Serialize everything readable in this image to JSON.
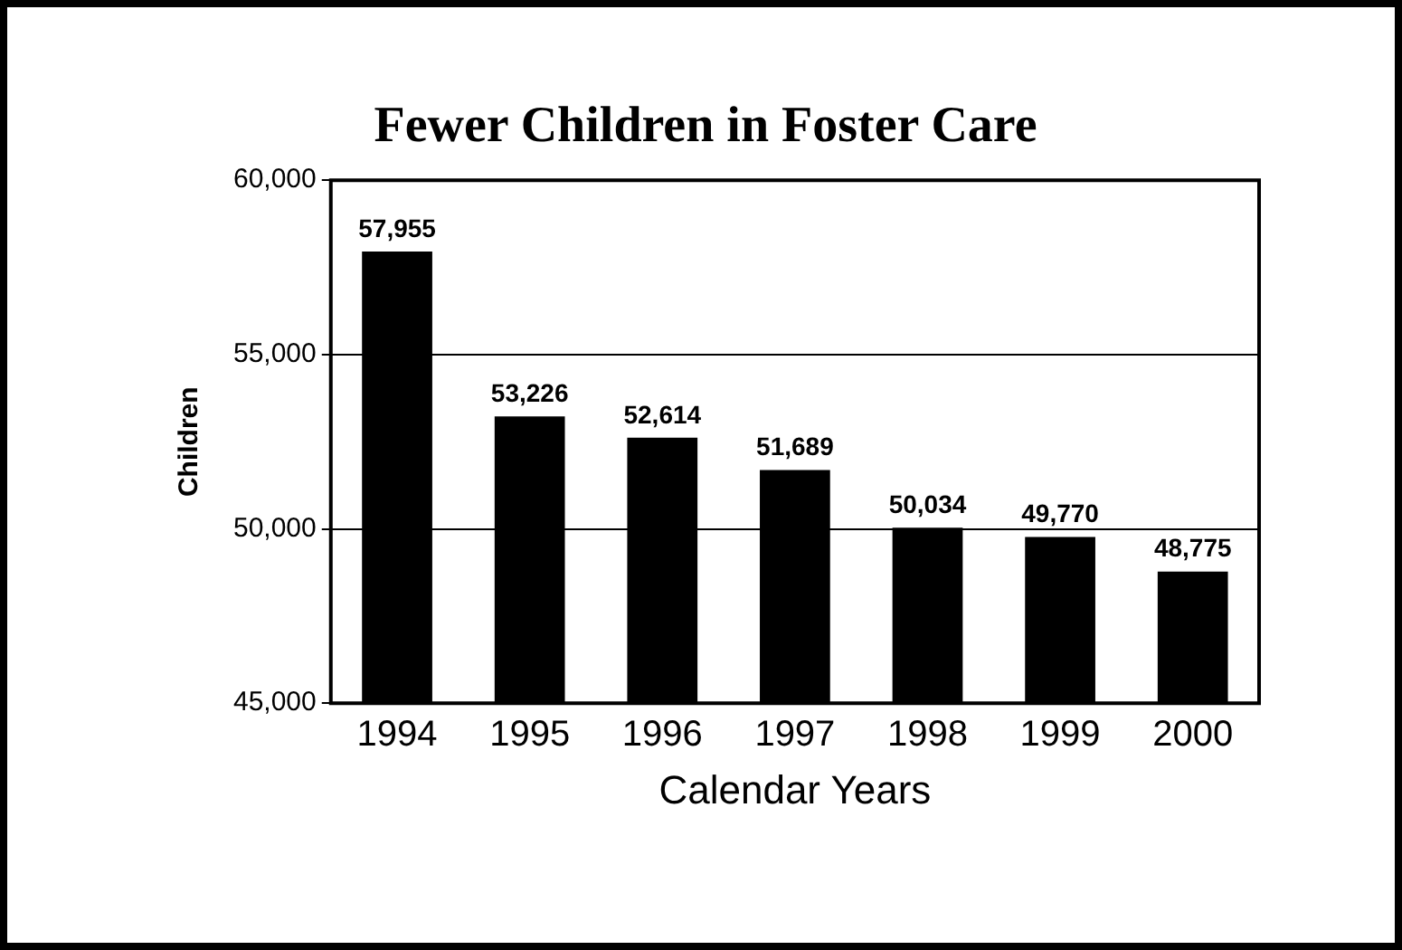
{
  "chart_data": {
    "type": "bar",
    "title": "Fewer Children in Foster Care",
    "xlabel": "Calendar Years",
    "ylabel": "Children",
    "categories": [
      "1994",
      "1995",
      "1996",
      "1997",
      "1998",
      "1999",
      "2000"
    ],
    "values": [
      57955,
      53226,
      52614,
      51689,
      50034,
      49770,
      48775
    ],
    "color": "#000000",
    "value_labels": [
      "57,955",
      "53,226",
      "52,614",
      "51,689",
      "50,034",
      "49,770",
      "48,775"
    ],
    "ylim": [
      45000,
      60000
    ],
    "yticks": [
      {
        "value": 45000,
        "label": "45,000"
      },
      {
        "value": 50000,
        "label": "50,000"
      },
      {
        "value": 55000,
        "label": "55,000"
      },
      {
        "value": 60000,
        "label": "60,000"
      }
    ],
    "grid": "y"
  }
}
